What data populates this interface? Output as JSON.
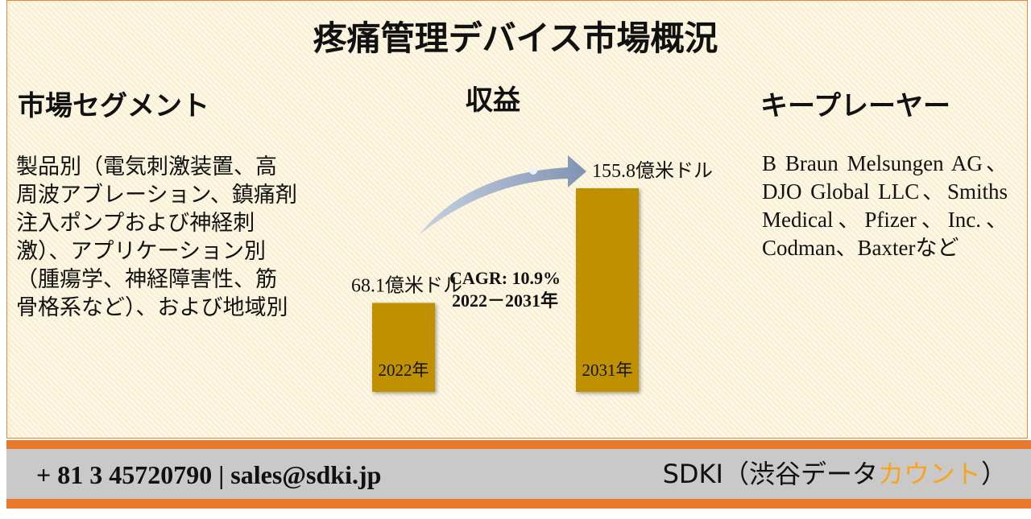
{
  "header": {
    "title": "疼痛管理デバイス市場概況"
  },
  "segments": {
    "heading": "市場セグメント",
    "text": "製品別（電気刺激装置、高周波アブレーション、鎮痛剤注入ポンプおよび神経刺激）、アプリケーション別（腫瘍学、神経障害性、筋骨格系など）、および地域別"
  },
  "key_players": {
    "heading": "キープレーヤー",
    "text": "B Braun Melsungen AG、DJO Global LLC、Smiths Medical、Pfizer、Inc.、Codman、Baxterなど"
  },
  "chart_data": {
    "type": "bar",
    "title": "収益",
    "categories": [
      "2022年",
      "2031年"
    ],
    "values": [
      68.1,
      155.8
    ],
    "value_labels": [
      "68.1億米ドル",
      "155.8億米ドル"
    ],
    "color": "#bf9000",
    "annotations": [
      "CAGR: 10.9%",
      "2022－2031年"
    ]
  },
  "footer": {
    "contact": "+ 81 3 45720790 | sales@sdki.jp",
    "brand_parts": [
      "SDKI（渋谷データ",
      "カウント",
      "）"
    ]
  }
}
